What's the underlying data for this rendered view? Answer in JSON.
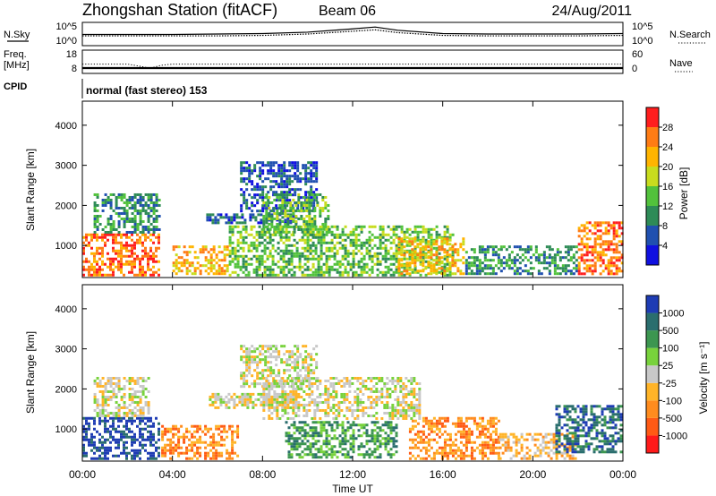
{
  "header": {
    "station": "Zhongshan Station (fitACF)",
    "beam": "Beam 06",
    "date": "24/Aug/2011"
  },
  "mode_line": "normal (fast stereo) 153",
  "left_labels": {
    "nsky": "N.Sky",
    "freq": "Freq.",
    "freq_unit": "[MHz]",
    "cpid": "CPID"
  },
  "right_labels": {
    "nsearch": "N.Search",
    "nave": "Nave"
  },
  "colors": {
    "power": [
      "#1010e0",
      "#2050b0",
      "#2e8b57",
      "#52c23c",
      "#c8dc1e",
      "#ffb400",
      "#ff7c14",
      "#ff1e1e"
    ],
    "velocity": [
      "#ff1a1a",
      "#ff5a14",
      "#ff8c1e",
      "#ffb428",
      "#c8c8c8",
      "#78d23c",
      "#3c9650",
      "#2a6e6e",
      "#1e3cb4"
    ]
  },
  "chart_data": [
    {
      "type": "line",
      "panel": "noise",
      "x": [
        0,
        2,
        4,
        6,
        8,
        10,
        12,
        13,
        14,
        16,
        18,
        20,
        22,
        24
      ],
      "series": [
        {
          "values": [
            2.4,
            2.4,
            2.4,
            2.5,
            2.6,
            2.9,
            3.6,
            4.0,
            3.3,
            2.6,
            2.5,
            2.5,
            2.5,
            2.6
          ]
        },
        {
          "values": [
            2.1,
            2.1,
            2.1,
            2.1,
            2.2,
            2.5,
            3.1,
            3.4,
            2.8,
            2.2,
            2.1,
            2.1,
            2.1,
            2.2
          ]
        }
      ],
      "ytick_labels": [
        "10^5",
        "10^0"
      ],
      "ytick_labels_right": [
        "10^5",
        "10^0"
      ],
      "xlim": [
        0,
        24
      ]
    },
    {
      "type": "line",
      "panel": "frequency",
      "x": [
        0,
        2.0,
        2.5,
        3.0,
        3.5,
        4,
        8,
        12,
        16,
        20,
        24
      ],
      "series": [
        {
          "values": [
            12.0,
            12.0,
            11.2,
            10.2,
            11.5,
            12.0,
            12.0,
            12.0,
            12.0,
            12.0,
            12.0
          ]
        }
      ],
      "ytick_labels": [
        "18",
        "8"
      ],
      "ytick_labels_right": [
        "60",
        "0"
      ],
      "xlim": [
        0,
        24
      ]
    },
    {
      "type": "heatmap",
      "panel": "power",
      "ylabel": "Slant Range [km]",
      "ylim": [
        200,
        4600
      ],
      "yticks": [
        1000,
        2000,
        3000,
        4000
      ],
      "xlim": [
        0,
        24
      ],
      "colorbar_label": "Power [dB]",
      "colorbar_ticks": [
        "28",
        "24",
        "20",
        "16",
        "12",
        "8",
        "4"
      ],
      "patches": [
        {
          "t0": 0.0,
          "t1": 3.5,
          "r0": 250,
          "r1": 1300,
          "level": 6
        },
        {
          "t0": 0.5,
          "t1": 3.5,
          "r0": 1300,
          "r1": 2300,
          "level": 2
        },
        {
          "t0": 4.0,
          "t1": 6.5,
          "r0": 250,
          "r1": 1000,
          "level": 5
        },
        {
          "t0": 5.5,
          "t1": 9.5,
          "r0": 1500,
          "r1": 1800,
          "level": 1
        },
        {
          "t0": 7.0,
          "t1": 10.5,
          "r0": 1800,
          "r1": 3100,
          "level": 1
        },
        {
          "t0": 8.0,
          "t1": 11.0,
          "r0": 1200,
          "r1": 2300,
          "level": 3
        },
        {
          "t0": 6.5,
          "t1": 16.5,
          "r0": 250,
          "r1": 1500,
          "level": 3
        },
        {
          "t0": 14.0,
          "t1": 17.0,
          "r0": 250,
          "r1": 1200,
          "level": 5
        },
        {
          "t0": 17.0,
          "t1": 22.0,
          "r0": 250,
          "r1": 1000,
          "level": 2
        },
        {
          "t0": 22.0,
          "t1": 24.0,
          "r0": 250,
          "r1": 1600,
          "level": 6
        }
      ]
    },
    {
      "type": "heatmap",
      "panel": "velocity",
      "ylabel": "Slant Range [km]",
      "xlabel": "Time UT",
      "ylim": [
        200,
        4600
      ],
      "yticks": [
        1000,
        2000,
        3000,
        4000
      ],
      "xlim": [
        0,
        24
      ],
      "xtick_labels": [
        "00:00",
        "04:00",
        "08:00",
        "12:00",
        "16:00",
        "20:00",
        "00:00"
      ],
      "colorbar_label": "Velocity [m s⁻¹]",
      "colorbar_ticks": [
        "1000",
        "500",
        "100",
        "25",
        "-25",
        "-100",
        "-500",
        "-1000"
      ],
      "patches": [
        {
          "t0": 0.0,
          "t1": 3.5,
          "r0": 250,
          "r1": 1300,
          "level": 8
        },
        {
          "t0": 0.5,
          "t1": 3.0,
          "r0": 1300,
          "r1": 2300,
          "level": 4
        },
        {
          "t0": 3.5,
          "t1": 7.0,
          "r0": 250,
          "r1": 1100,
          "level": 2
        },
        {
          "t0": 5.5,
          "t1": 9.5,
          "r0": 1500,
          "r1": 1900,
          "level": 4
        },
        {
          "t0": 7.0,
          "t1": 10.5,
          "r0": 2000,
          "r1": 3100,
          "level": 4
        },
        {
          "t0": 8.0,
          "t1": 15.0,
          "r0": 1200,
          "r1": 2300,
          "level": 4
        },
        {
          "t0": 9.0,
          "t1": 14.0,
          "r0": 250,
          "r1": 1200,
          "level": 6
        },
        {
          "t0": 14.5,
          "t1": 18.5,
          "r0": 250,
          "r1": 1300,
          "level": 2
        },
        {
          "t0": 18.5,
          "t1": 22.0,
          "r0": 250,
          "r1": 900,
          "level": 3
        },
        {
          "t0": 21.0,
          "t1": 24.0,
          "r0": 400,
          "r1": 1600,
          "level": 7
        }
      ]
    }
  ]
}
